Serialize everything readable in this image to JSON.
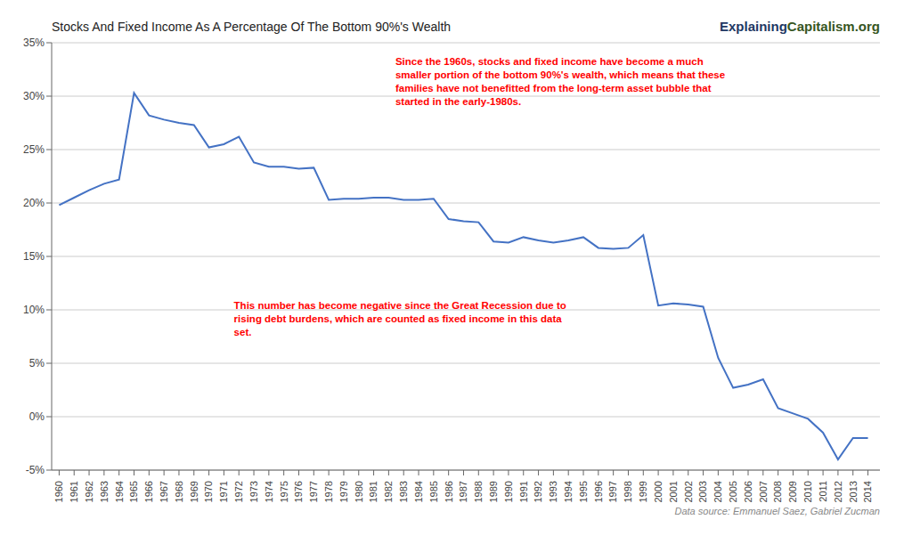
{
  "chart_data": {
    "type": "line",
    "title": "Stocks And Fixed Income As A Percentage Of The Bottom 90%'s Wealth",
    "subtitle": [
      {
        "text": "Explaining",
        "color": "#1f3864"
      },
      {
        "text": "Capitalism.org",
        "color": "#375623"
      }
    ],
    "annotations": [
      {
        "text": "Since the 1960s, stocks and fixed income have become a much\nsmaller portion of the bottom 90%'s wealth, which means that these\nfamilies have not benefitted from the long-term asset bubble that\nstarted in the early-1980s.",
        "color": "red"
      },
      {
        "text": "This number has become negative since the Great Recession due to\nrising debt burdens, which are counted as fixed income in this data\nset.",
        "color": "red"
      }
    ],
    "source": {
      "text": "Data source: Emmanuel Saez, Gabriel Zucman",
      "color": "#888888"
    },
    "color": "#4472c4",
    "grid": true,
    "x": [
      1960,
      1961,
      1962,
      1963,
      1964,
      1965,
      1966,
      1967,
      1968,
      1969,
      1970,
      1971,
      1972,
      1973,
      1974,
      1975,
      1976,
      1977,
      1978,
      1979,
      1980,
      1981,
      1982,
      1983,
      1984,
      1985,
      1986,
      1987,
      1988,
      1989,
      1990,
      1991,
      1992,
      1993,
      1994,
      1995,
      1996,
      1997,
      1998,
      1999,
      2000,
      2001,
      2002,
      2003,
      2004,
      2005,
      2006,
      2007,
      2008,
      2009,
      2010,
      2011,
      2012,
      2013,
      2014
    ],
    "values": [
      19.8,
      20.5,
      21.2,
      21.8,
      22.2,
      30.3,
      28.2,
      27.8,
      27.5,
      27.3,
      25.2,
      25.5,
      26.2,
      23.8,
      23.4,
      23.4,
      23.2,
      23.3,
      20.3,
      20.4,
      20.4,
      20.5,
      20.5,
      20.3,
      20.3,
      20.4,
      18.5,
      18.3,
      18.2,
      16.4,
      16.3,
      16.8,
      16.5,
      16.3,
      16.5,
      16.8,
      15.8,
      15.7,
      15.8,
      17.0,
      10.4,
      10.6,
      10.5,
      10.3,
      5.5,
      2.7,
      3.0,
      3.5,
      0.8,
      0.3,
      -0.2,
      -1.5,
      -4.0,
      -2.0,
      -2.0
    ],
    "xlim": [
      1959.5,
      2014.8
    ],
    "xticks": [
      1960,
      1961,
      1962,
      1963,
      1964,
      1965,
      1966,
      1967,
      1968,
      1969,
      1970,
      1971,
      1972,
      1973,
      1974,
      1975,
      1976,
      1977,
      1978,
      1979,
      1980,
      1981,
      1982,
      1983,
      1984,
      1985,
      1986,
      1987,
      1988,
      1989,
      1990,
      1991,
      1992,
      1993,
      1994,
      1995,
      1996,
      1997,
      1998,
      1999,
      2000,
      2001,
      2002,
      2003,
      2004,
      2005,
      2006,
      2007,
      2008,
      2009,
      2010,
      2011,
      2012,
      2013,
      2014
    ],
    "ylim": [
      -5,
      35
    ],
    "yticks": [
      {
        "value": -5,
        "label": "-5%"
      },
      {
        "value": 0,
        "label": "0%"
      },
      {
        "value": 5,
        "label": "5%"
      },
      {
        "value": 10,
        "label": "10%"
      },
      {
        "value": 15,
        "label": "15%"
      },
      {
        "value": 20,
        "label": "20%"
      },
      {
        "value": 25,
        "label": "25%"
      },
      {
        "value": 30,
        "label": "30%"
      },
      {
        "value": 35,
        "label": "35%"
      }
    ]
  }
}
